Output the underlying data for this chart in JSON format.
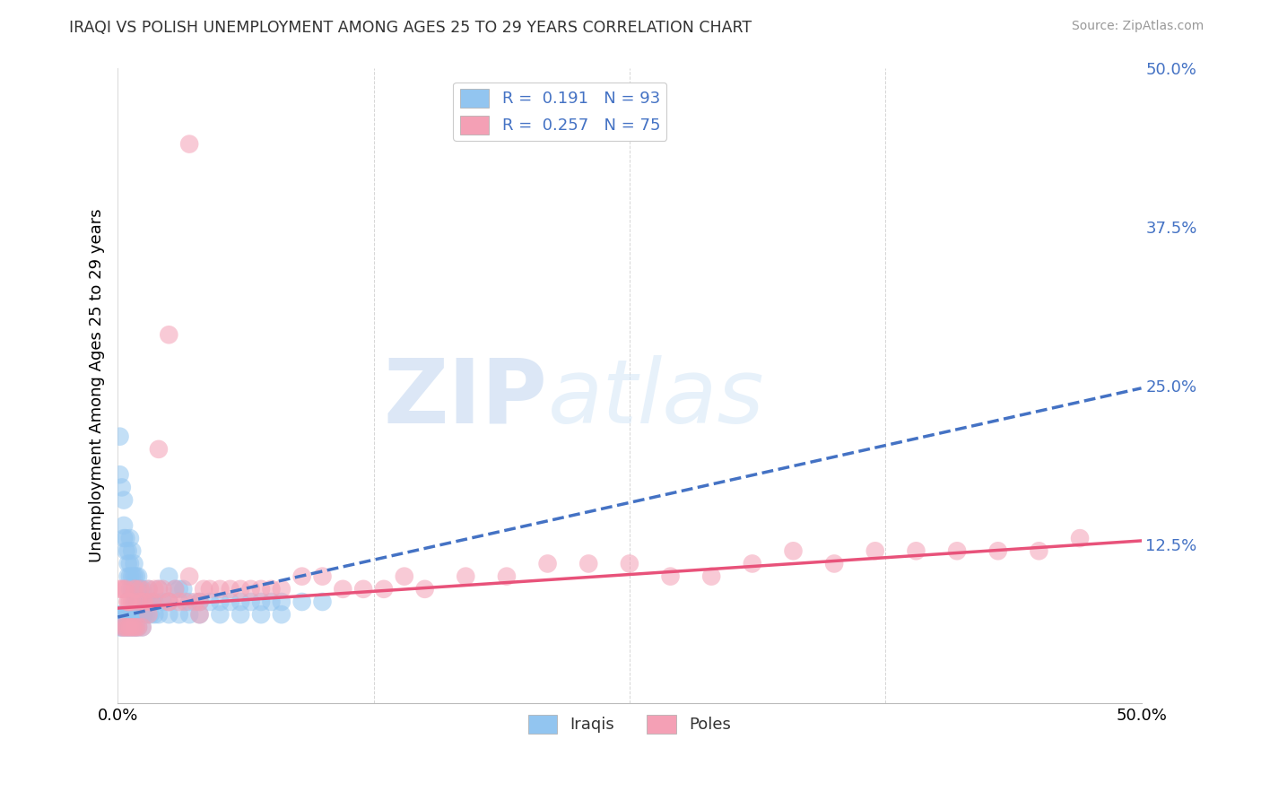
{
  "title": "IRAQI VS POLISH UNEMPLOYMENT AMONG AGES 25 TO 29 YEARS CORRELATION CHART",
  "source": "Source: ZipAtlas.com",
  "ylabel": "Unemployment Among Ages 25 to 29 years",
  "xlim": [
    0.0,
    0.5
  ],
  "ylim": [
    0.0,
    0.5
  ],
  "xtick_vals": [
    0.0,
    0.125,
    0.25,
    0.375,
    0.5
  ],
  "xtick_labels": [
    "0.0%",
    "",
    "",
    "",
    "50.0%"
  ],
  "ytick_vals": [
    0.0,
    0.125,
    0.25,
    0.375,
    0.5
  ],
  "ytick_labels": [
    "",
    "12.5%",
    "25.0%",
    "37.5%",
    "50.0%"
  ],
  "iraqis_R": 0.191,
  "iraqis_N": 93,
  "poles_R": 0.257,
  "poles_N": 75,
  "iraqi_color": "#92C5F0",
  "pole_color": "#F4A0B5",
  "iraqi_line_color": "#4472C4",
  "pole_line_color": "#E8527A",
  "background_color": "#FFFFFF",
  "grid_color": "#CCCCCC",
  "iraqi_scatter_x": [
    0.001,
    0.001,
    0.002,
    0.003,
    0.003,
    0.003,
    0.004,
    0.004,
    0.005,
    0.005,
    0.005,
    0.006,
    0.006,
    0.006,
    0.006,
    0.007,
    0.007,
    0.007,
    0.008,
    0.008,
    0.008,
    0.009,
    0.009,
    0.009,
    0.01,
    0.01,
    0.01,
    0.011,
    0.011,
    0.012,
    0.012,
    0.013,
    0.013,
    0.014,
    0.015,
    0.015,
    0.016,
    0.017,
    0.018,
    0.02,
    0.022,
    0.025,
    0.025,
    0.028,
    0.03,
    0.032,
    0.035,
    0.04,
    0.045,
    0.05,
    0.055,
    0.06,
    0.065,
    0.07,
    0.075,
    0.08,
    0.09,
    0.1,
    0.001,
    0.002,
    0.003,
    0.004,
    0.005,
    0.006,
    0.007,
    0.008,
    0.009,
    0.01,
    0.011,
    0.012,
    0.014,
    0.016,
    0.018,
    0.02,
    0.025,
    0.03,
    0.035,
    0.04,
    0.05,
    0.06,
    0.07,
    0.08,
    0.001,
    0.002,
    0.003,
    0.004,
    0.005,
    0.006,
    0.007,
    0.008,
    0.009,
    0.01,
    0.012
  ],
  "iraqi_scatter_y": [
    0.21,
    0.18,
    0.17,
    0.16,
    0.14,
    0.13,
    0.13,
    0.12,
    0.12,
    0.11,
    0.1,
    0.13,
    0.11,
    0.1,
    0.09,
    0.12,
    0.1,
    0.09,
    0.11,
    0.1,
    0.08,
    0.1,
    0.09,
    0.08,
    0.1,
    0.09,
    0.08,
    0.09,
    0.08,
    0.09,
    0.08,
    0.08,
    0.07,
    0.08,
    0.09,
    0.08,
    0.08,
    0.08,
    0.08,
    0.09,
    0.08,
    0.1,
    0.08,
    0.09,
    0.09,
    0.09,
    0.08,
    0.08,
    0.08,
    0.08,
    0.08,
    0.08,
    0.08,
    0.08,
    0.08,
    0.08,
    0.08,
    0.08,
    0.07,
    0.07,
    0.07,
    0.07,
    0.07,
    0.07,
    0.07,
    0.07,
    0.07,
    0.07,
    0.07,
    0.07,
    0.07,
    0.07,
    0.07,
    0.07,
    0.07,
    0.07,
    0.07,
    0.07,
    0.07,
    0.07,
    0.07,
    0.07,
    0.06,
    0.06,
    0.06,
    0.06,
    0.06,
    0.06,
    0.06,
    0.06,
    0.06,
    0.06,
    0.06
  ],
  "pole_scatter_x": [
    0.001,
    0.002,
    0.003,
    0.004,
    0.005,
    0.005,
    0.006,
    0.007,
    0.008,
    0.009,
    0.01,
    0.011,
    0.012,
    0.013,
    0.015,
    0.016,
    0.017,
    0.018,
    0.02,
    0.022,
    0.025,
    0.028,
    0.03,
    0.033,
    0.035,
    0.038,
    0.04,
    0.042,
    0.045,
    0.05,
    0.055,
    0.06,
    0.065,
    0.07,
    0.075,
    0.08,
    0.09,
    0.1,
    0.11,
    0.12,
    0.13,
    0.14,
    0.15,
    0.17,
    0.19,
    0.21,
    0.23,
    0.25,
    0.27,
    0.29,
    0.31,
    0.33,
    0.35,
    0.37,
    0.39,
    0.41,
    0.43,
    0.45,
    0.47,
    0.002,
    0.003,
    0.004,
    0.005,
    0.006,
    0.007,
    0.008,
    0.009,
    0.01,
    0.012,
    0.015,
    0.02,
    0.025,
    0.025,
    0.035,
    0.04
  ],
  "pole_scatter_y": [
    0.09,
    0.09,
    0.09,
    0.09,
    0.08,
    0.08,
    0.08,
    0.08,
    0.09,
    0.09,
    0.08,
    0.09,
    0.08,
    0.08,
    0.09,
    0.08,
    0.08,
    0.09,
    0.09,
    0.09,
    0.08,
    0.09,
    0.08,
    0.08,
    0.1,
    0.08,
    0.08,
    0.09,
    0.09,
    0.09,
    0.09,
    0.09,
    0.09,
    0.09,
    0.09,
    0.09,
    0.1,
    0.1,
    0.09,
    0.09,
    0.09,
    0.1,
    0.09,
    0.1,
    0.1,
    0.11,
    0.11,
    0.11,
    0.1,
    0.1,
    0.11,
    0.12,
    0.11,
    0.12,
    0.12,
    0.12,
    0.12,
    0.12,
    0.13,
    0.06,
    0.06,
    0.06,
    0.06,
    0.06,
    0.06,
    0.06,
    0.06,
    0.06,
    0.06,
    0.07,
    0.2,
    0.29,
    0.08,
    0.44,
    0.07
  ],
  "iraqi_trend_x0": 0.0,
  "iraqi_trend_y0": 0.068,
  "iraqi_trend_x1": 0.5,
  "iraqi_trend_y1": 0.248,
  "pole_trend_x0": 0.0,
  "pole_trend_y0": 0.075,
  "pole_trend_x1": 0.5,
  "pole_trend_y1": 0.128
}
